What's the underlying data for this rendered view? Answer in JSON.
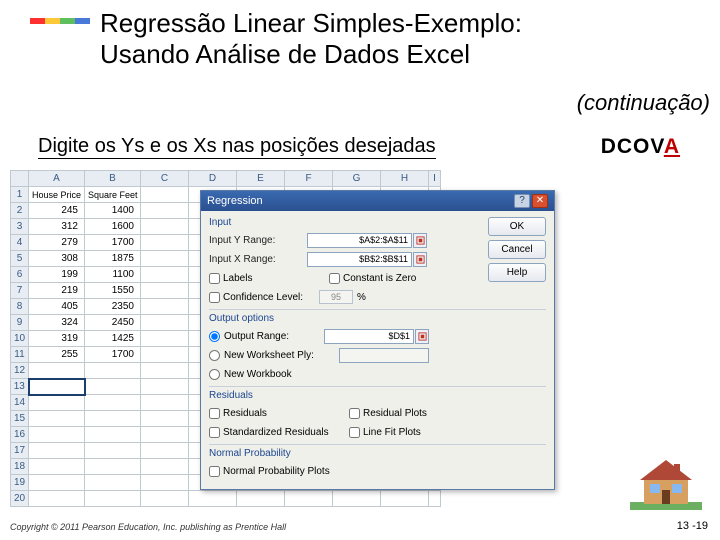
{
  "accent_colors": [
    "#ff3030",
    "#ffc838",
    "#5fbf5f",
    "#4878d8"
  ],
  "title_l1": "Regressão Linear Simples-Exemplo:",
  "title_l2": "Usando Análise de Dados Excel",
  "continuation": "(continuação)",
  "instruction": "Digite os Ys e os Xs nas posições desejadas",
  "dcova_pre": "DCOV",
  "dcova_a": "A",
  "sheet": {
    "cols": [
      "A",
      "B",
      "C",
      "D",
      "E",
      "F",
      "G",
      "H",
      "I"
    ],
    "header1": "House Price",
    "header2": "Square Feet",
    "rows": [
      [
        "245",
        "1400"
      ],
      [
        "312",
        "1600"
      ],
      [
        "279",
        "1700"
      ],
      [
        "308",
        "1875"
      ],
      [
        "199",
        "1100"
      ],
      [
        "219",
        "1550"
      ],
      [
        "405",
        "2350"
      ],
      [
        "324",
        "2450"
      ],
      [
        "319",
        "1425"
      ],
      [
        "255",
        "1700"
      ]
    ],
    "nrows": 20,
    "selected_row": 13
  },
  "dialog": {
    "title": "Regression",
    "buttons": {
      "ok": "OK",
      "cancel": "Cancel",
      "help": "Help"
    },
    "input_section": "Input",
    "y_label": "Input Y Range:",
    "y_value": "$A$2:$A$11",
    "x_label": "Input X Range:",
    "x_value": "$B$2:$B$11",
    "labels_cb": "Labels",
    "const_cb": "Constant is Zero",
    "conf_cb": "Confidence Level:",
    "conf_val": "95",
    "conf_unit": "%",
    "output_section": "Output options",
    "out_range": "Output Range:",
    "out_val": "$D$1",
    "new_ws": "New Worksheet Ply:",
    "new_wb": "New Workbook",
    "resid_section": "Residuals",
    "resid_cb": "Residuals",
    "resid_plot": "Residual Plots",
    "std_resid": "Standardized Residuals",
    "line_fit": "Line Fit Plots",
    "np_section": "Normal Probability",
    "np_cb": "Normal Probability Plots"
  },
  "copyright": "Copyright © 2011 Pearson Education, Inc. publishing as Prentice Hall",
  "page": "13 -19",
  "house_colors": {
    "wall": "#d8a060",
    "roof": "#b04838",
    "window": "#88b8f0",
    "grass": "#6ab060",
    "trim": "#6a3c20"
  }
}
